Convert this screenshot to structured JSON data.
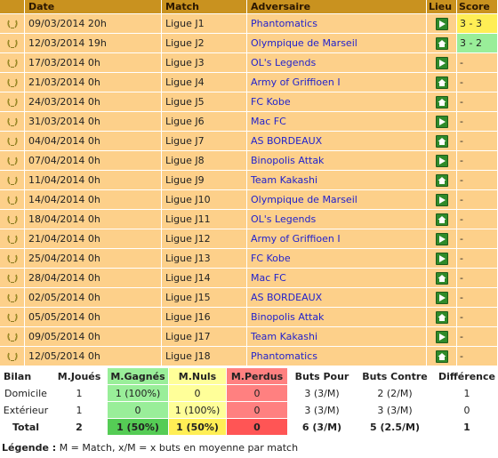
{
  "headers": {
    "date": "Date",
    "match": "Match",
    "opponent": "Adversaire",
    "lieu": "Lieu",
    "score": "Score"
  },
  "matches": [
    {
      "date": "09/03/2014 20h",
      "match": "Ligue J1",
      "opponent": "Phantomatics",
      "venue": "away",
      "score": "3 - 3",
      "result": "draw"
    },
    {
      "date": "12/03/2014 19h",
      "match": "Ligue J2",
      "opponent": "Olympique de Marseil",
      "venue": "home",
      "score": "3 - 2",
      "result": "win"
    },
    {
      "date": "17/03/2014 0h",
      "match": "Ligue J3",
      "opponent": "OL's Legends",
      "venue": "away",
      "score": "-",
      "result": ""
    },
    {
      "date": "21/03/2014 0h",
      "match": "Ligue J4",
      "opponent": "Army of Griffioen I",
      "venue": "home",
      "score": "-",
      "result": ""
    },
    {
      "date": "24/03/2014 0h",
      "match": "Ligue J5",
      "opponent": "FC Kobe",
      "venue": "home",
      "score": "-",
      "result": ""
    },
    {
      "date": "31/03/2014 0h",
      "match": "Ligue J6",
      "opponent": "Mac FC",
      "venue": "away",
      "score": "-",
      "result": ""
    },
    {
      "date": "04/04/2014 0h",
      "match": "Ligue J7",
      "opponent": "AS BORDEAUX",
      "venue": "home",
      "score": "-",
      "result": ""
    },
    {
      "date": "07/04/2014 0h",
      "match": "Ligue J8",
      "opponent": "Binopolis Attak",
      "venue": "away",
      "score": "-",
      "result": ""
    },
    {
      "date": "11/04/2014 0h",
      "match": "Ligue J9",
      "opponent": "Team Kakashi",
      "venue": "home",
      "score": "-",
      "result": ""
    },
    {
      "date": "14/04/2014 0h",
      "match": "Ligue J10",
      "opponent": "Olympique de Marseil",
      "venue": "away",
      "score": "-",
      "result": ""
    },
    {
      "date": "18/04/2014 0h",
      "match": "Ligue J11",
      "opponent": "OL's Legends",
      "venue": "home",
      "score": "-",
      "result": ""
    },
    {
      "date": "21/04/2014 0h",
      "match": "Ligue J12",
      "opponent": "Army of Griffioen I",
      "venue": "away",
      "score": "-",
      "result": ""
    },
    {
      "date": "25/04/2014 0h",
      "match": "Ligue J13",
      "opponent": "FC Kobe",
      "venue": "away",
      "score": "-",
      "result": ""
    },
    {
      "date": "28/04/2014 0h",
      "match": "Ligue J14",
      "opponent": "Mac FC",
      "venue": "home",
      "score": "-",
      "result": ""
    },
    {
      "date": "02/05/2014 0h",
      "match": "Ligue J15",
      "opponent": "AS BORDEAUX",
      "venue": "away",
      "score": "-",
      "result": ""
    },
    {
      "date": "05/05/2014 0h",
      "match": "Ligue J16",
      "opponent": "Binopolis Attak",
      "venue": "home",
      "score": "-",
      "result": ""
    },
    {
      "date": "09/05/2014 0h",
      "match": "Ligue J17",
      "opponent": "Team Kakashi",
      "venue": "away",
      "score": "-",
      "result": ""
    },
    {
      "date": "12/05/2014 0h",
      "match": "Ligue J18",
      "opponent": "Phantomatics",
      "venue": "home",
      "score": "-",
      "result": ""
    }
  ],
  "bilan": {
    "headers": {
      "label": "Bilan",
      "joues": "M.Joués",
      "gagnes": "M.Gagnés",
      "nuls": "M.Nuls",
      "perdus": "M.Perdus",
      "pour": "Buts Pour",
      "contre": "Buts Contre",
      "diff": "Différence"
    },
    "rows": [
      {
        "label": "Domicile",
        "joues": "1",
        "gagnes": "1 (100%)",
        "nuls": "0",
        "perdus": "0",
        "pour": "3 (3/M)",
        "contre": "2 (2/M)",
        "diff": "1"
      },
      {
        "label": "Extérieur",
        "joues": "1",
        "gagnes": "0",
        "nuls": "1 (100%)",
        "perdus": "0",
        "pour": "3 (3/M)",
        "contre": "3 (3/M)",
        "diff": "0"
      },
      {
        "label": "Total",
        "joues": "2",
        "gagnes": "1 (50%)",
        "nuls": "1 (50%)",
        "perdus": "0",
        "pour": "6 (3/M)",
        "contre": "5 (2.5/M)",
        "diff": "1"
      }
    ]
  },
  "legend": {
    "label": "Légende :",
    "text": " M = Match, x/M = x buts en moyenne par match"
  },
  "icons": {
    "row": "laurel-icon",
    "home": "home-icon",
    "away": "away-arrow-icon"
  },
  "colors": {
    "header": "#c9921f",
    "row": "#fdd08a",
    "draw": "#ffee55",
    "win": "#99ee99",
    "loss": "#ff8080",
    "link": "#2222cc"
  }
}
